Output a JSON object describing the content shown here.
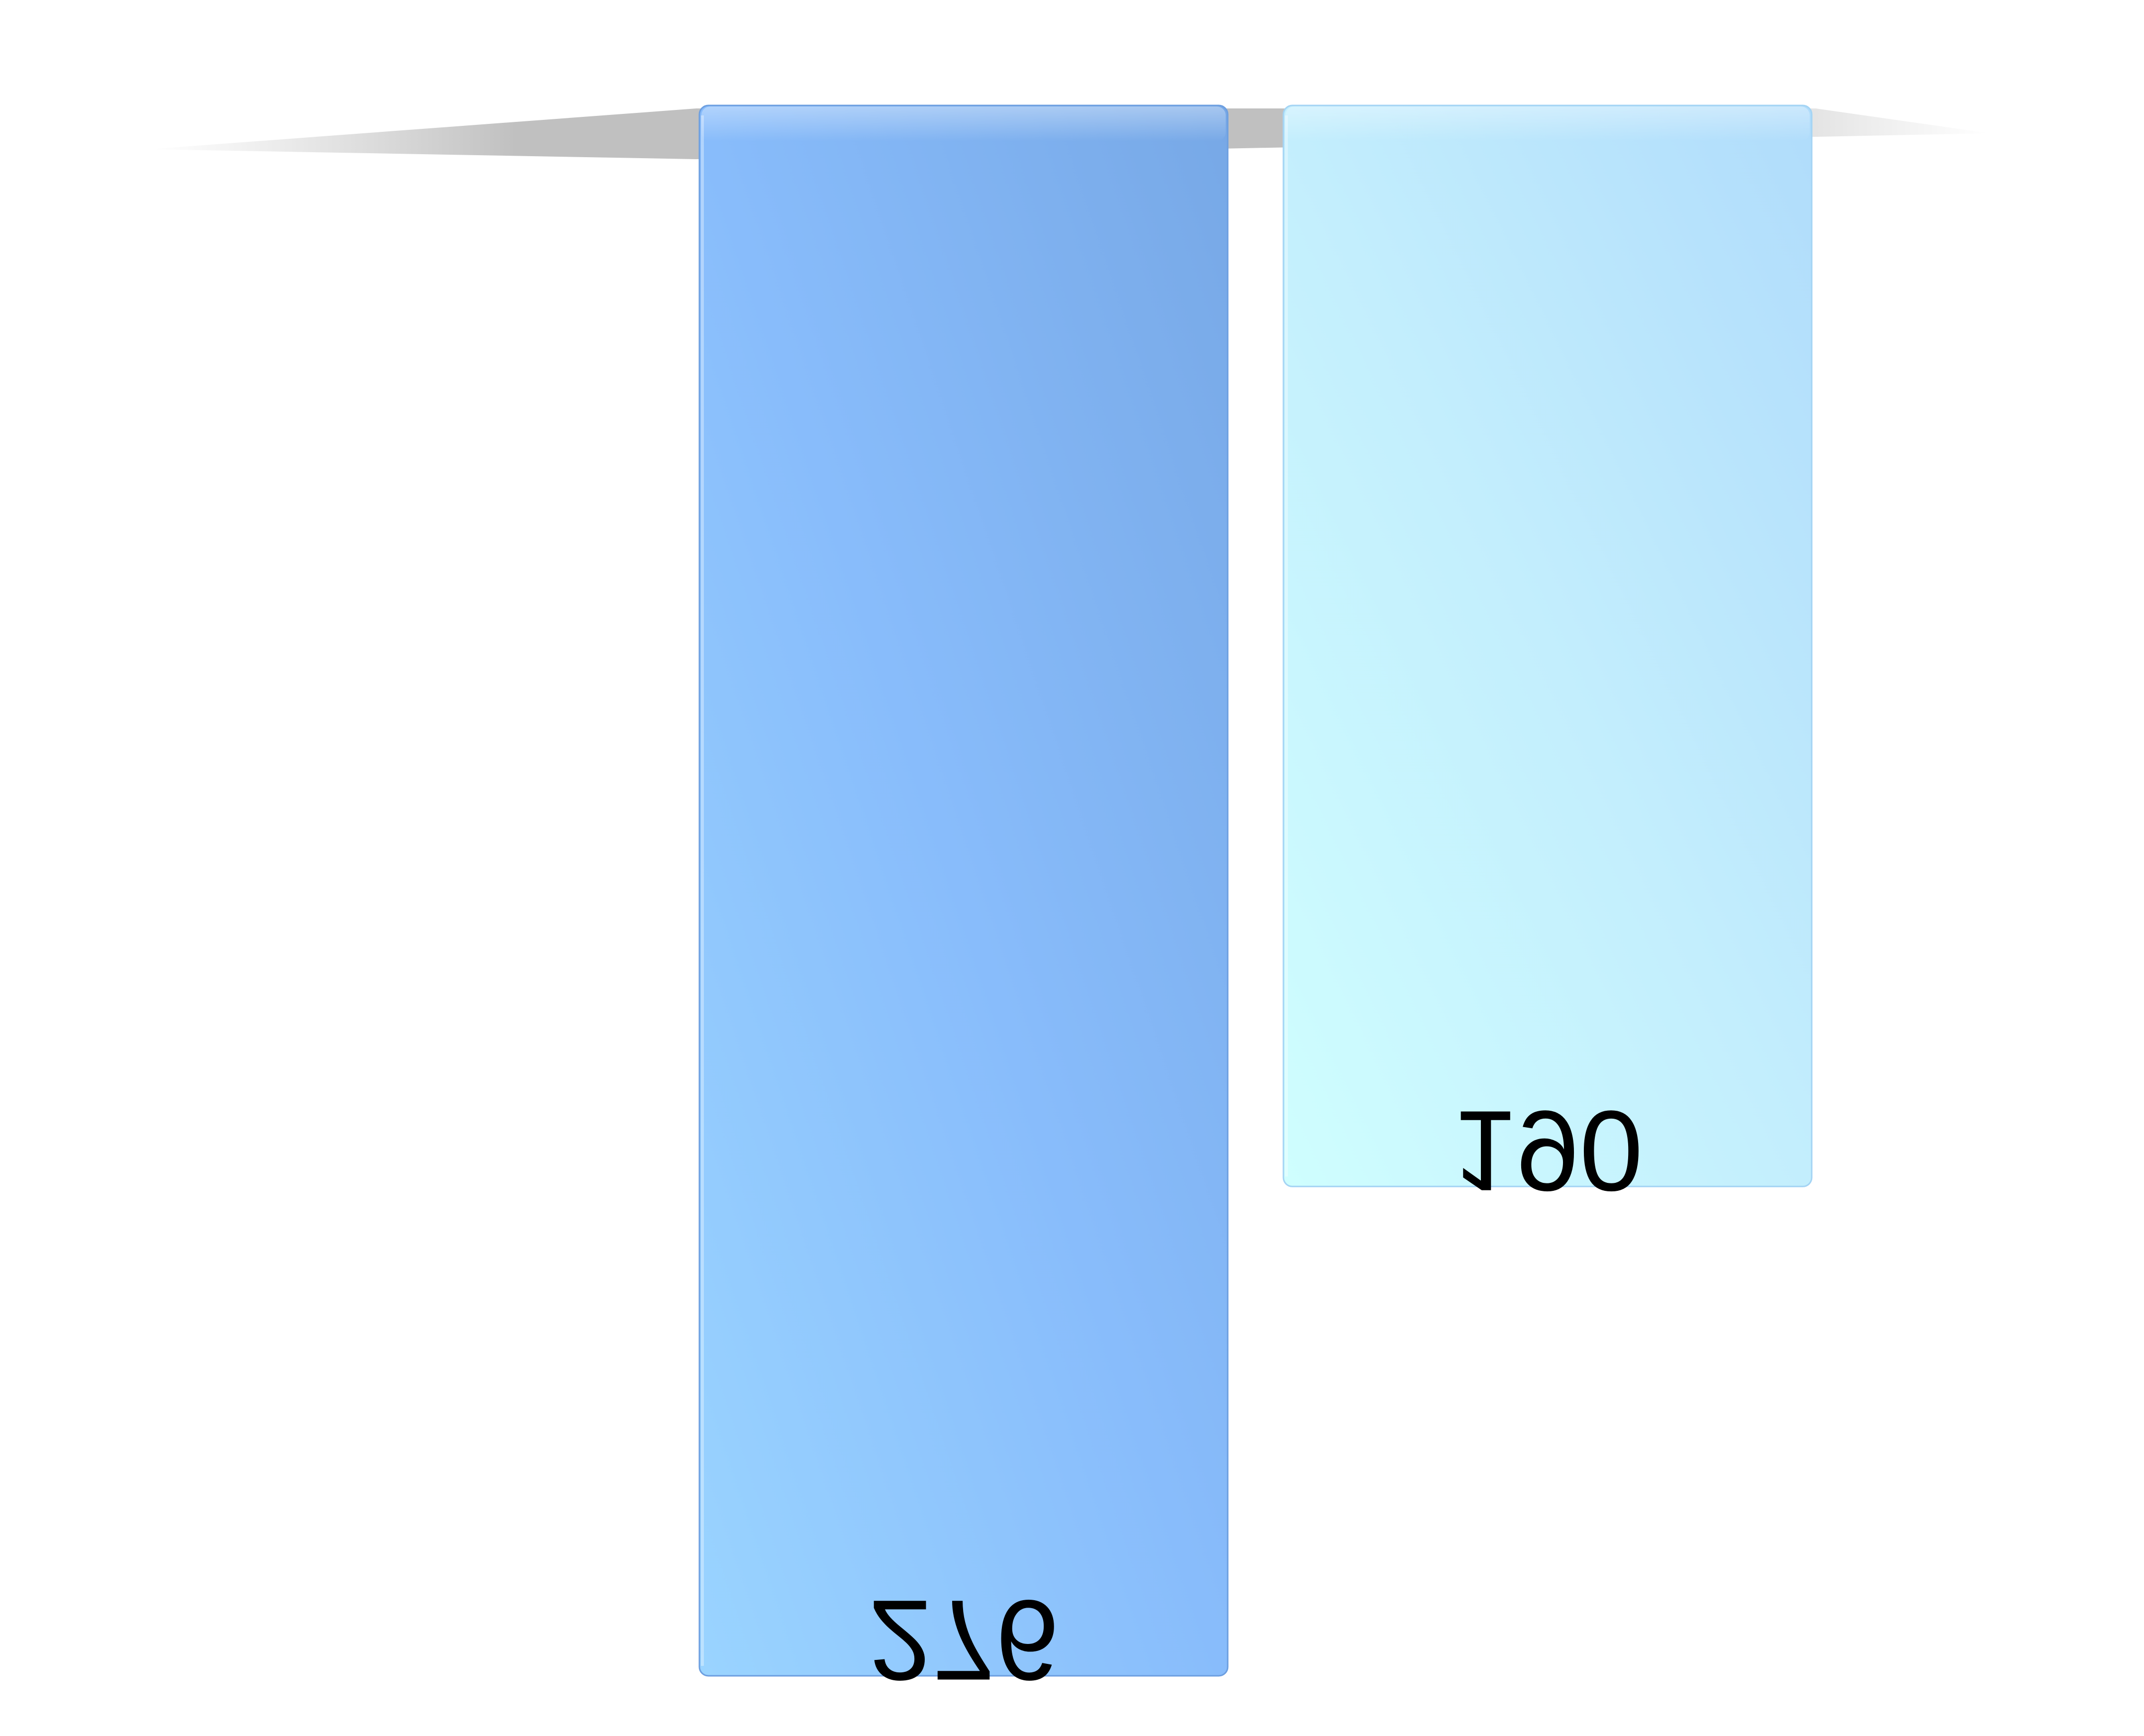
{
  "chart_data": {
    "type": "bar",
    "orientation": "vertical-inverted",
    "categories": [
      "",
      ""
    ],
    "series": [
      {
        "values": [
          276,
          190
        ],
        "colors": [
          "#86b8f6",
          "#c4eefc"
        ]
      }
    ],
    "data_labels": [
      "276",
      "190"
    ],
    "data_labels_mirrored": true,
    "title": "",
    "xlabel": "",
    "ylabel": "",
    "ylim": [
      0,
      276
    ],
    "grid": false,
    "legend": "none"
  }
}
